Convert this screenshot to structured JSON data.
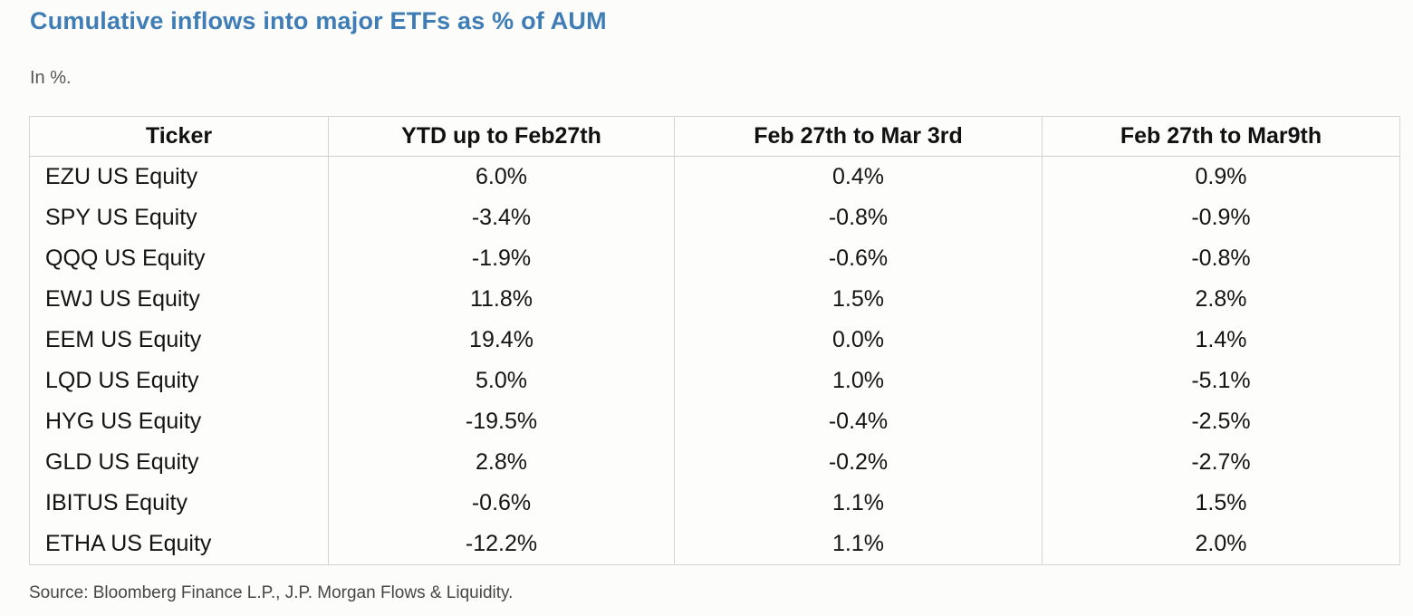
{
  "page": {
    "title": "Cumulative inflows into major ETFs as % of AUM",
    "subtitle": "In %.",
    "source": "Source: Bloomberg Finance L.P., J.P. Morgan Flows & Liquidity."
  },
  "colors": {
    "title_blue": "#3f7db6",
    "border_gray": "#d5d5d2",
    "text_dark": "#141414",
    "muted_gray": "#565656"
  },
  "chart_data": {
    "type": "table",
    "title": "Cumulative inflows into major ETFs as % of AUM",
    "unit_note": "In %.",
    "columns": [
      "Ticker",
      "YTD up to Feb27th",
      "Feb 27th to Mar 3rd",
      "Feb 27th to Mar9th"
    ],
    "rows": [
      {
        "ticker": "EZU US Equity",
        "values": [
          "6.0%",
          "0.4%",
          "0.9%"
        ]
      },
      {
        "ticker": "SPY US Equity",
        "values": [
          "-3.4%",
          "-0.8%",
          "-0.9%"
        ]
      },
      {
        "ticker": "QQQ US Equity",
        "values": [
          "-1.9%",
          "-0.6%",
          "-0.8%"
        ]
      },
      {
        "ticker": "EWJ US Equity",
        "values": [
          "11.8%",
          "1.5%",
          "2.8%"
        ]
      },
      {
        "ticker": "EEM US Equity",
        "values": [
          "19.4%",
          "0.0%",
          "1.4%"
        ]
      },
      {
        "ticker": "LQD US Equity",
        "values": [
          "5.0%",
          "1.0%",
          "-5.1%"
        ]
      },
      {
        "ticker": "HYG US Equity",
        "values": [
          "-19.5%",
          "-0.4%",
          "-2.5%"
        ]
      },
      {
        "ticker": "GLD US Equity",
        "values": [
          "2.8%",
          "-0.2%",
          "-2.7%"
        ]
      },
      {
        "ticker": "IBITUS Equity",
        "values": [
          "-0.6%",
          "1.1%",
          "1.5%"
        ]
      },
      {
        "ticker": "ETHA US Equity",
        "values": [
          "-12.2%",
          "1.1%",
          "2.0%"
        ]
      }
    ],
    "source": "Source: Bloomberg Finance L.P., J.P. Morgan Flows & Liquidity."
  }
}
